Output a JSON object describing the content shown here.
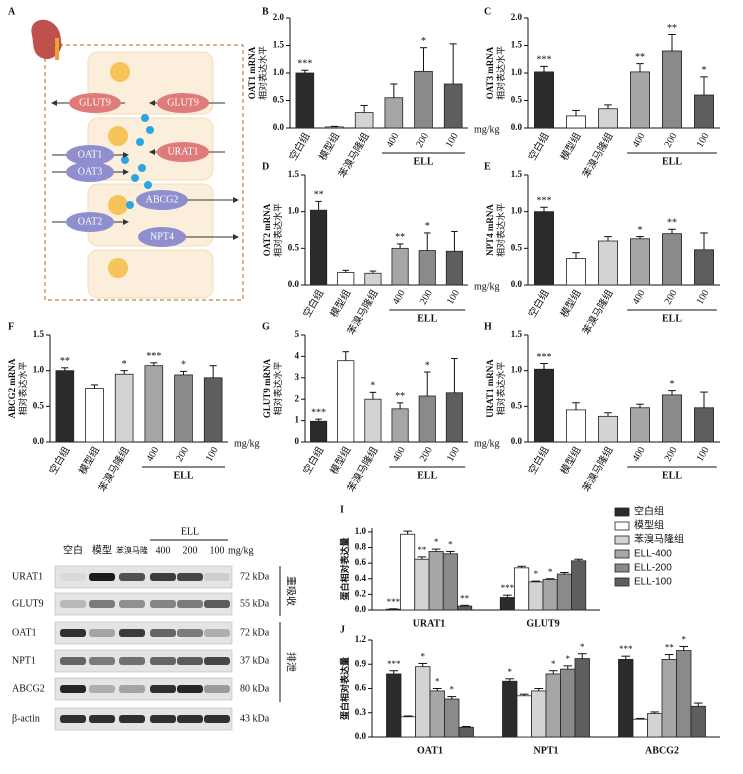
{
  "diagram": {
    "letter": "A",
    "transporters": [
      "GLUT9",
      "GLUT9",
      "OAT1",
      "URAT1",
      "OAT3",
      "ABCG2",
      "OAT2",
      "NPT4"
    ]
  },
  "blot": {
    "lanes": [
      "空白",
      "模型",
      "苯溴马隆",
      "400",
      "200",
      "100"
    ],
    "unit": "mg/kg",
    "group": "ELL",
    "rows": [
      {
        "protein": "URAT1",
        "size": "72 kDa"
      },
      {
        "protein": "GLUT9",
        "size": "55 kDa"
      },
      {
        "protein": "OAT1",
        "size": "72 kDa"
      },
      {
        "protein": "NPT1",
        "size": "37 kDa"
      },
      {
        "protein": "ABCG2",
        "size": "80 kDa"
      },
      {
        "protein": "β-actin",
        "size": "43 kDa"
      }
    ],
    "sections": [
      "重吸收",
      "排泄"
    ]
  },
  "chart_data": [
    {
      "panel": "B",
      "type": "bar",
      "y_label": [
        "OAT1 mRNA",
        "相对表达水平"
      ],
      "categories": [
        "空白组",
        "模型组",
        "苯溴马隆组",
        "400",
        "200",
        "100"
      ],
      "values": [
        1.0,
        0.02,
        0.28,
        0.55,
        1.03,
        0.8
      ],
      "errors": [
        0.05,
        0.01,
        0.13,
        0.25,
        0.43,
        0.73
      ],
      "significance": [
        "***",
        null,
        null,
        null,
        "*",
        null
      ],
      "colors": [
        "#2b2b2b",
        "#ffffff",
        "#d3d3d3",
        "#a6a6a6",
        "#8a8a8a",
        "#5e5e5e"
      ],
      "ylim": [
        0,
        2
      ],
      "yticks": [
        {
          "value": 0,
          "label": "0.0"
        },
        0.5,
        {
          "value": 1,
          "label": "1.0"
        },
        1.5,
        {
          "value": 2,
          "label": "2.0"
        }
      ],
      "group_label": "ELL",
      "unit": "mg/kg"
    },
    {
      "panel": "C",
      "type": "bar",
      "y_label": [
        "OAT3 mRNA",
        "相对表达水平"
      ],
      "categories": [
        "空白组",
        "模型组",
        "苯溴马隆组",
        "400",
        "200",
        "100"
      ],
      "values": [
        1.02,
        0.22,
        0.35,
        1.02,
        1.4,
        0.6
      ],
      "errors": [
        0.1,
        0.1,
        0.07,
        0.15,
        0.3,
        0.33
      ],
      "significance": [
        "***",
        null,
        null,
        "**",
        "**",
        "*"
      ],
      "colors": [
        "#2b2b2b",
        "#ffffff",
        "#d3d3d3",
        "#a6a6a6",
        "#8a8a8a",
        "#5e5e5e"
      ],
      "ylim": [
        0,
        2
      ],
      "yticks": [
        {
          "value": 0,
          "label": "0.0"
        },
        0.5,
        {
          "value": 1,
          "label": "1.0"
        },
        1.5,
        {
          "value": 2,
          "label": "2.0"
        }
      ],
      "group_label": "ELL"
    },
    {
      "panel": "D",
      "type": "bar",
      "y_label": [
        "OAT2 mRNA",
        "相对表达水平"
      ],
      "categories": [
        "空白组",
        "模型组",
        "苯溴马隆组",
        "400",
        "200",
        "100"
      ],
      "values": [
        1.02,
        0.17,
        0.16,
        0.5,
        0.47,
        0.46
      ],
      "errors": [
        0.12,
        0.03,
        0.03,
        0.06,
        0.24,
        0.27
      ],
      "significance": [
        "**",
        null,
        null,
        "**",
        "*",
        null
      ],
      "colors": [
        "#2b2b2b",
        "#ffffff",
        "#d3d3d3",
        "#a6a6a6",
        "#8a8a8a",
        "#5e5e5e"
      ],
      "ylim": [
        0,
        1.5
      ],
      "yticks": [
        {
          "value": 0,
          "label": "0.0"
        },
        0.5,
        {
          "value": 1,
          "label": "1.0"
        },
        1.5
      ],
      "group_label": "ELL",
      "unit": "mg/kg"
    },
    {
      "panel": "E",
      "type": "bar",
      "y_label": [
        "NPT4 mRNA",
        "相对表达水平"
      ],
      "categories": [
        "空白组",
        "模型组",
        "苯溴马隆组",
        "400",
        "200",
        "100"
      ],
      "values": [
        1.0,
        0.36,
        0.6,
        0.63,
        0.7,
        0.48
      ],
      "errors": [
        0.06,
        0.08,
        0.06,
        0.03,
        0.06,
        0.23
      ],
      "significance": [
        "***",
        null,
        null,
        "*",
        "**",
        null
      ],
      "colors": [
        "#2b2b2b",
        "#ffffff",
        "#d3d3d3",
        "#a6a6a6",
        "#8a8a8a",
        "#5e5e5e"
      ],
      "ylim": [
        0,
        1.5
      ],
      "yticks": [
        {
          "value": 0,
          "label": "0.0"
        },
        0.5,
        {
          "value": 1,
          "label": "1.0"
        },
        1.5
      ],
      "group_label": "ELL"
    },
    {
      "panel": "F",
      "type": "bar",
      "y_label": [
        "ABCG2 mRNA",
        "相对表达水平"
      ],
      "categories": [
        "空白组",
        "模型组",
        "苯溴马隆组",
        "400",
        "200",
        "100"
      ],
      "values": [
        1.0,
        0.75,
        0.95,
        1.07,
        0.94,
        0.9
      ],
      "errors": [
        0.04,
        0.05,
        0.05,
        0.04,
        0.05,
        0.17
      ],
      "significance": [
        "**",
        null,
        "*",
        "***",
        "*",
        null
      ],
      "colors": [
        "#2b2b2b",
        "#ffffff",
        "#d3d3d3",
        "#a6a6a6",
        "#8a8a8a",
        "#5e5e5e"
      ],
      "ylim": [
        0,
        1.5
      ],
      "yticks": [
        {
          "value": 0,
          "label": "0.0"
        },
        0.5,
        {
          "value": 1,
          "label": "1.0"
        },
        1.5
      ],
      "group_label": "ELL",
      "unit": "mg/kg"
    },
    {
      "panel": "G",
      "type": "bar",
      "y_label": [
        "GLUT9 mRNA",
        "相对表达水平"
      ],
      "categories": [
        "空白组",
        "模型组",
        "苯溴马隆组",
        "400",
        "200",
        "100"
      ],
      "values": [
        0.97,
        3.8,
        2.0,
        1.55,
        2.15,
        2.3
      ],
      "errors": [
        0.1,
        0.42,
        0.32,
        0.28,
        1.12,
        1.6
      ],
      "significance": [
        "***",
        null,
        "*",
        "**",
        "*",
        null
      ],
      "colors": [
        "#2b2b2b",
        "#ffffff",
        "#d3d3d3",
        "#a6a6a6",
        "#8a8a8a",
        "#5e5e5e"
      ],
      "ylim": [
        0,
        5
      ],
      "yticks": [
        0,
        1,
        2,
        3,
        4,
        5
      ],
      "group_label": "ELL",
      "unit": "mg/kg"
    },
    {
      "panel": "H",
      "type": "bar",
      "y_label": [
        "URAT1 mRNA",
        "相对表达水平"
      ],
      "categories": [
        "空白组",
        "模型组",
        "苯溴马隆组",
        "400",
        "200",
        "100"
      ],
      "values": [
        1.02,
        0.45,
        0.36,
        0.48,
        0.66,
        0.48
      ],
      "errors": [
        0.08,
        0.1,
        0.05,
        0.05,
        0.06,
        0.22
      ],
      "significance": [
        "***",
        null,
        null,
        null,
        "*",
        null
      ],
      "colors": [
        "#2b2b2b",
        "#ffffff",
        "#d3d3d3",
        "#a6a6a6",
        "#8a8a8a",
        "#5e5e5e"
      ],
      "ylim": [
        0,
        1.5
      ],
      "yticks": [
        {
          "value": 0,
          "label": "0.0"
        },
        0.5,
        {
          "value": 1,
          "label": "1.0"
        },
        1.5
      ],
      "group_label": "ELL"
    },
    {
      "panel": "I",
      "type": "grouped_bar",
      "y_label": [
        "蛋白相对表达量"
      ],
      "legend": "right",
      "categories": [
        "URAT1",
        "GLUT9"
      ],
      "series": [
        {
          "name": "空白组",
          "color": "#2b2b2b",
          "values": [
            0.01,
            0.16
          ],
          "errors": [
            0.005,
            0.03
          ],
          "significance": [
            "***",
            "***"
          ]
        },
        {
          "name": "模型组",
          "color": "#ffffff",
          "values": [
            0.97,
            0.54
          ],
          "errors": [
            0.04,
            0.02
          ],
          "significance": [
            null,
            null
          ]
        },
        {
          "name": "苯溴马隆组",
          "color": "#d3d3d3",
          "values": [
            0.65,
            0.36
          ],
          "errors": [
            0.03,
            0.01
          ],
          "significance": [
            "**",
            "*"
          ]
        },
        {
          "name": "ELL-400",
          "color": "#a6a6a6",
          "values": [
            0.75,
            0.39
          ],
          "errors": [
            0.03,
            0.01
          ],
          "significance": [
            "*",
            "*"
          ]
        },
        {
          "name": "ELL-200",
          "color": "#8a8a8a",
          "values": [
            0.72,
            0.46
          ],
          "errors": [
            0.03,
            0.02
          ],
          "significance": [
            "*",
            null
          ]
        },
        {
          "name": "ELL-100",
          "color": "#5e5e5e",
          "values": [
            0.05,
            0.63
          ],
          "errors": [
            0.01,
            0.02
          ],
          "significance": [
            "**",
            null
          ]
        }
      ],
      "ylim": [
        0,
        1.05
      ],
      "yticks": [
        {
          "value": 0,
          "label": "0.0"
        },
        0.2,
        0.4,
        0.6,
        0.8,
        {
          "value": 1,
          "label": "1.0"
        }
      ]
    },
    {
      "panel": "J",
      "type": "grouped_bar",
      "y_label": [
        "蛋白相对表达量"
      ],
      "categories": [
        "OAT1",
        "NPT1",
        "ABCG2"
      ],
      "series": [
        {
          "color": "#2b2b2b",
          "values": [
            0.78,
            0.69,
            0.96
          ],
          "errors": [
            0.04,
            0.03,
            0.04
          ],
          "significance": [
            "***",
            "*",
            "***"
          ]
        },
        {
          "color": "#ffffff",
          "values": [
            0.25,
            0.51,
            0.22
          ],
          "errors": [
            0.01,
            0.02,
            0.01
          ],
          "significance": [
            null,
            null,
            null
          ]
        },
        {
          "color": "#d3d3d3",
          "values": [
            0.87,
            0.57,
            0.29
          ],
          "errors": [
            0.04,
            0.03,
            0.02
          ],
          "significance": [
            "*",
            null,
            null
          ]
        },
        {
          "color": "#a6a6a6",
          "values": [
            0.57,
            0.78,
            0.96
          ],
          "errors": [
            0.03,
            0.04,
            0.06
          ],
          "significance": [
            "*",
            "*",
            "**"
          ]
        },
        {
          "color": "#8a8a8a",
          "values": [
            0.47,
            0.84,
            1.07
          ],
          "errors": [
            0.03,
            0.04,
            0.05
          ],
          "significance": [
            "*",
            "*",
            "*"
          ]
        },
        {
          "color": "#5e5e5e",
          "values": [
            0.12,
            0.97,
            0.38
          ],
          "errors": [
            0.01,
            0.06,
            0.04
          ],
          "significance": [
            null,
            "*",
            null
          ]
        }
      ],
      "ylim": [
        0,
        1.2
      ],
      "yticks": [
        {
          "value": 0,
          "label": "0.0"
        },
        0.3,
        0.6,
        0.9,
        {
          "value": 1.2,
          "label": "1.2"
        }
      ]
    }
  ]
}
